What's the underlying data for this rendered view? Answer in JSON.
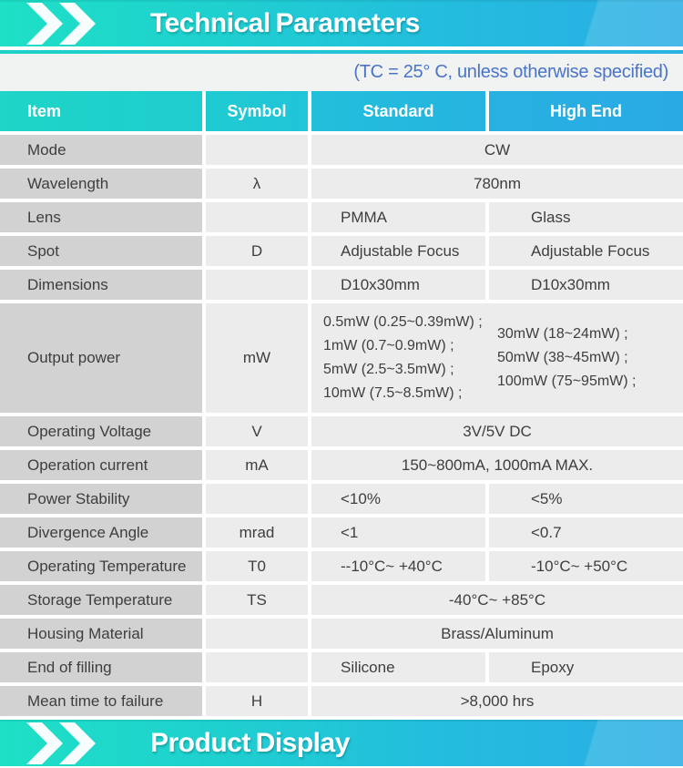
{
  "header": {
    "title": "Technical Parameters",
    "condition_note": "(TC = 25° C, unless otherwise specified)"
  },
  "footer": {
    "title": "Product Display"
  },
  "table": {
    "headers": [
      "Item",
      "Symbol",
      "Standard",
      "High End"
    ],
    "rows": [
      {
        "item": "Mode",
        "symbol": "",
        "type": "span",
        "value": "CW"
      },
      {
        "item": "Wavelength",
        "symbol": "λ",
        "type": "span",
        "value": "780nm"
      },
      {
        "item": "Lens",
        "symbol": "",
        "type": "split",
        "standard": "PMMA",
        "high_end": "Glass"
      },
      {
        "item": "Spot",
        "symbol": "D",
        "type": "split",
        "standard": "Adjustable Focus",
        "high_end": "Adjustable Focus"
      },
      {
        "item": "Dimensions",
        "symbol": "",
        "type": "split",
        "standard": "D10x30mm",
        "high_end": "D10x30mm"
      },
      {
        "item": "Output power",
        "symbol": "mW",
        "type": "power",
        "standard_lines": [
          "0.5mW (0.25~0.39mW) ;",
          "1mW (0.7~0.9mW) ;",
          "5mW (2.5~3.5mW) ;",
          "10mW (7.5~8.5mW) ;"
        ],
        "high_end_lines": [
          "30mW (18~24mW) ;",
          "50mW (38~45mW) ;",
          "100mW (75~95mW) ;"
        ]
      },
      {
        "item": "Operating Voltage",
        "symbol": "V",
        "type": "span",
        "value": "3V/5V DC"
      },
      {
        "item": "Operation current",
        "symbol": "mA",
        "type": "span",
        "value": "150~800mA, 1000mA MAX."
      },
      {
        "item": "Power Stability",
        "symbol": "",
        "type": "split",
        "standard": "<10%",
        "high_end": "<5%"
      },
      {
        "item": "Divergence Angle",
        "symbol": "mrad",
        "type": "split",
        "standard": "<1",
        "high_end": "<0.7"
      },
      {
        "item": "Operating Temperature",
        "symbol": "T0",
        "type": "split",
        "standard": "--10°C~ +40°C",
        "high_end": "-10°C~ +50°C"
      },
      {
        "item": "Storage Temperature",
        "symbol": "TS",
        "type": "span",
        "value": "-40°C~ +85°C"
      },
      {
        "item": "Housing Material",
        "symbol": "",
        "type": "span",
        "value": "Brass/Aluminum"
      },
      {
        "item": "End of filling",
        "symbol": "",
        "type": "split",
        "standard": "Silicone",
        "high_end": "Epoxy"
      },
      {
        "item": "Mean time to failure",
        "symbol": "H",
        "type": "span",
        "value": ">8,000 hrs"
      }
    ]
  },
  "colors": {
    "accent_teal": "#1ee0c6",
    "accent_blue": "#2aade5",
    "subtitle_text": "#4a74c8",
    "item_cell_bg": "#d2d2d2",
    "value_cell_bg": "#ececec",
    "body_text": "#3e3e3e",
    "header_text": "#ffffff"
  }
}
